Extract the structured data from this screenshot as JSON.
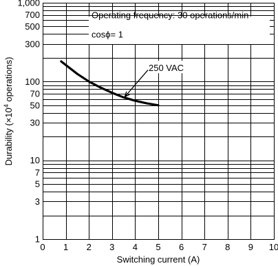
{
  "chart_data": {
    "type": "line",
    "xlabel": "Switching current (A)",
    "ylabel_parts": {
      "before": "Durability (×10",
      "sup": "4",
      "after": " operations)"
    },
    "xlim": [
      0,
      10
    ],
    "ylim": [
      1,
      1000
    ],
    "y_scale": "log",
    "grid": true,
    "x_ticks": [
      0,
      1,
      2,
      3,
      4,
      5,
      6,
      7,
      8,
      9,
      10
    ],
    "x_tick_labels": [
      "0",
      "1",
      "2",
      "3",
      "4",
      "5",
      "6",
      "7",
      "8",
      "9",
      "10"
    ],
    "y_ticks": [
      1,
      3,
      5,
      7,
      10,
      30,
      50,
      70,
      100,
      300,
      500,
      700,
      1000
    ],
    "y_tick_labels": [
      "1",
      "3",
      "5",
      "7",
      "10",
      "30",
      "50",
      "70",
      "100",
      "300",
      "500",
      "700",
      "1,000"
    ],
    "y_grid": [
      1,
      2,
      3,
      4,
      5,
      6,
      7,
      8,
      9,
      10,
      20,
      30,
      40,
      50,
      60,
      70,
      80,
      90,
      100,
      200,
      300,
      400,
      500,
      600,
      700,
      800,
      900,
      1000
    ],
    "annotations": {
      "line1": "Operating frequency: 30 operations/min",
      "line2": "cosϕ= 1"
    },
    "series": [
      {
        "name": "250 VAC",
        "x": [
          0.8,
          1.5,
          2.0,
          2.5,
          3.0,
          3.5,
          4.0,
          4.5,
          5.0
        ],
        "y": [
          180,
          125,
          100,
          84,
          72,
          63,
          57,
          53,
          50
        ]
      }
    ]
  }
}
